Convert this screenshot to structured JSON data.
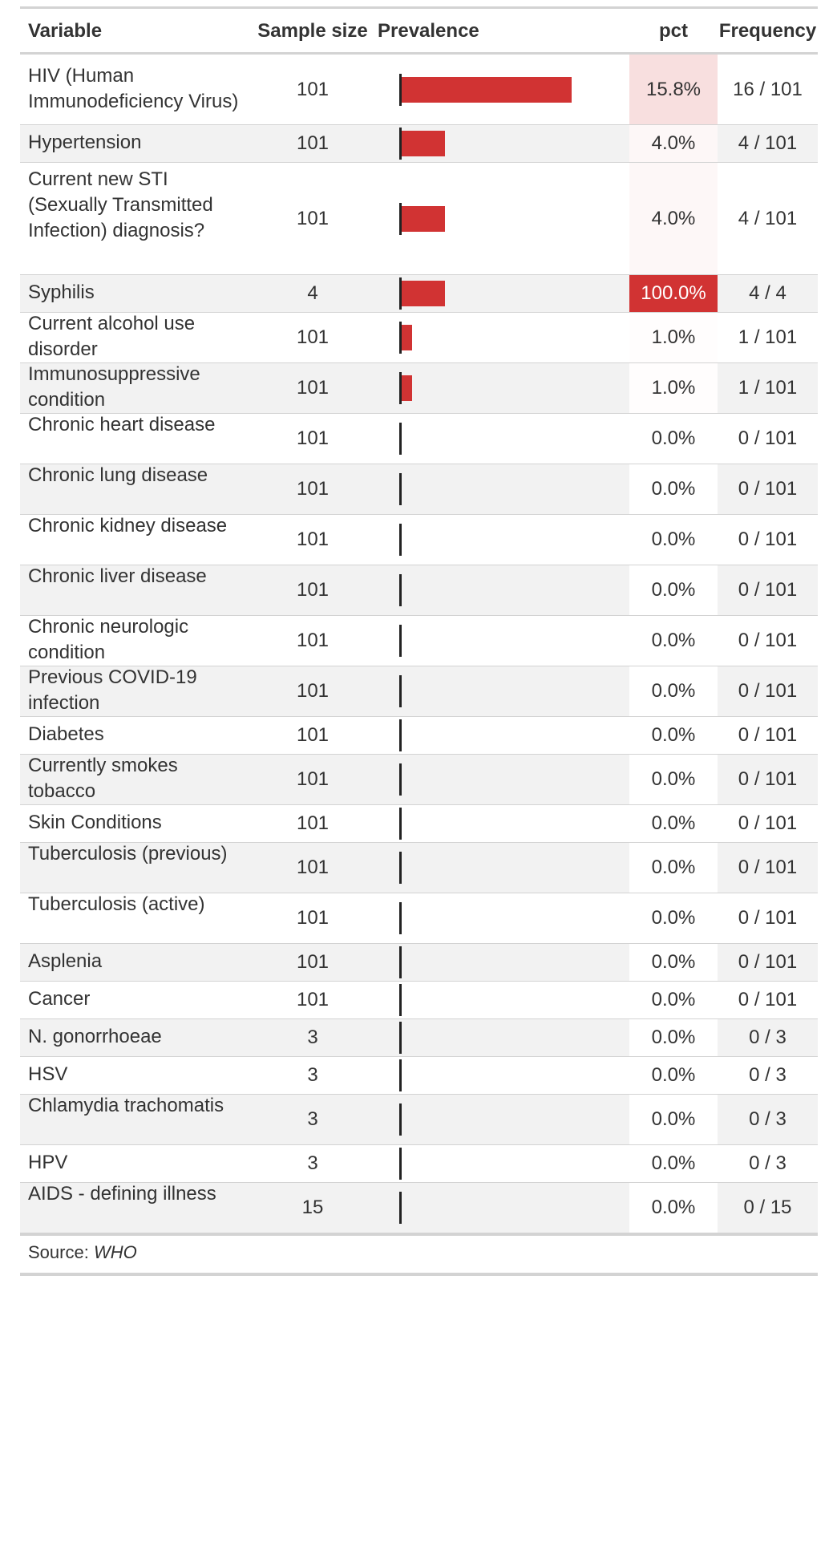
{
  "columns": {
    "variable": "Variable",
    "sample_size": "Sample size",
    "prevalence": "Prevalence",
    "pct": "pct",
    "frequency": "Frequency"
  },
  "source_label": "Source:",
  "source_value": "WHO",
  "colors": {
    "bar": "#d13333",
    "pct_high": "#d13333",
    "pct_low": "#ffffff",
    "row_alt": "#f2f2f2"
  },
  "chart_data": {
    "type": "table",
    "rows": [
      {
        "variable": "HIV (Human Immunodeficiency Virus)",
        "sample_size": "101",
        "prevalence": 15.8,
        "pct": "15.8%",
        "frequency": "16 / 101"
      },
      {
        "variable": "Hypertension",
        "sample_size": "101",
        "prevalence": 4.0,
        "pct": "4.0%",
        "frequency": "4 / 101"
      },
      {
        "variable": "Current new STI (Sexually Transmitted Infection) diagnosis?",
        "sample_size": "101",
        "prevalence": 4.0,
        "pct": "4.0%",
        "frequency": "4 / 101"
      },
      {
        "variable": "Syphilis",
        "sample_size": "4",
        "prevalence": 4.0,
        "pct": "100.0%",
        "frequency": "4 / 4"
      },
      {
        "variable": "Current alcohol use disorder",
        "sample_size": "101",
        "prevalence": 1.0,
        "pct": "1.0%",
        "frequency": "1 / 101"
      },
      {
        "variable": "Immunosuppressive condition",
        "sample_size": "101",
        "prevalence": 1.0,
        "pct": "1.0%",
        "frequency": "1 / 101"
      },
      {
        "variable": "Chronic heart disease",
        "sample_size": "101",
        "prevalence": 0,
        "pct": "0.0%",
        "frequency": "0 / 101"
      },
      {
        "variable": "Chronic lung disease",
        "sample_size": "101",
        "prevalence": 0,
        "pct": "0.0%",
        "frequency": "0 / 101"
      },
      {
        "variable": "Chronic kidney disease",
        "sample_size": "101",
        "prevalence": 0,
        "pct": "0.0%",
        "frequency": "0 / 101"
      },
      {
        "variable": "Chronic liver disease",
        "sample_size": "101",
        "prevalence": 0,
        "pct": "0.0%",
        "frequency": "0 / 101"
      },
      {
        "variable": "Chronic neurologic condition",
        "sample_size": "101",
        "prevalence": 0,
        "pct": "0.0%",
        "frequency": "0 / 101"
      },
      {
        "variable": "Previous COVID-19 infection",
        "sample_size": "101",
        "prevalence": 0,
        "pct": "0.0%",
        "frequency": "0 / 101"
      },
      {
        "variable": "Diabetes",
        "sample_size": "101",
        "prevalence": 0,
        "pct": "0.0%",
        "frequency": "0 / 101"
      },
      {
        "variable": "Currently smokes tobacco",
        "sample_size": "101",
        "prevalence": 0,
        "pct": "0.0%",
        "frequency": "0 / 101"
      },
      {
        "variable": "Skin Conditions",
        "sample_size": "101",
        "prevalence": 0,
        "pct": "0.0%",
        "frequency": "0 / 101"
      },
      {
        "variable": "Tuberculosis (previous)",
        "sample_size": "101",
        "prevalence": 0,
        "pct": "0.0%",
        "frequency": "0 / 101"
      },
      {
        "variable": "Tuberculosis (active)",
        "sample_size": "101",
        "prevalence": 0,
        "pct": "0.0%",
        "frequency": "0 / 101"
      },
      {
        "variable": "Asplenia",
        "sample_size": "101",
        "prevalence": 0,
        "pct": "0.0%",
        "frequency": "0 / 101"
      },
      {
        "variable": "Cancer",
        "sample_size": "101",
        "prevalence": 0,
        "pct": "0.0%",
        "frequency": "0 / 101"
      },
      {
        "variable": "N. gonorrhoeae",
        "sample_size": "3",
        "prevalence": 0,
        "pct": "0.0%",
        "frequency": "0 / 3"
      },
      {
        "variable": "HSV",
        "sample_size": "3",
        "prevalence": 0,
        "pct": "0.0%",
        "frequency": "0 / 3"
      },
      {
        "variable": "Chlamydia trachomatis",
        "sample_size": "3",
        "prevalence": 0,
        "pct": "0.0%",
        "frequency": "0 / 3"
      },
      {
        "variable": "HPV",
        "sample_size": "3",
        "prevalence": 0,
        "pct": "0.0%",
        "frequency": "0 / 3"
      },
      {
        "variable": "AIDS - defining illness",
        "sample_size": "15",
        "prevalence": 0,
        "pct": "0.0%",
        "frequency": "0 / 15"
      }
    ]
  }
}
